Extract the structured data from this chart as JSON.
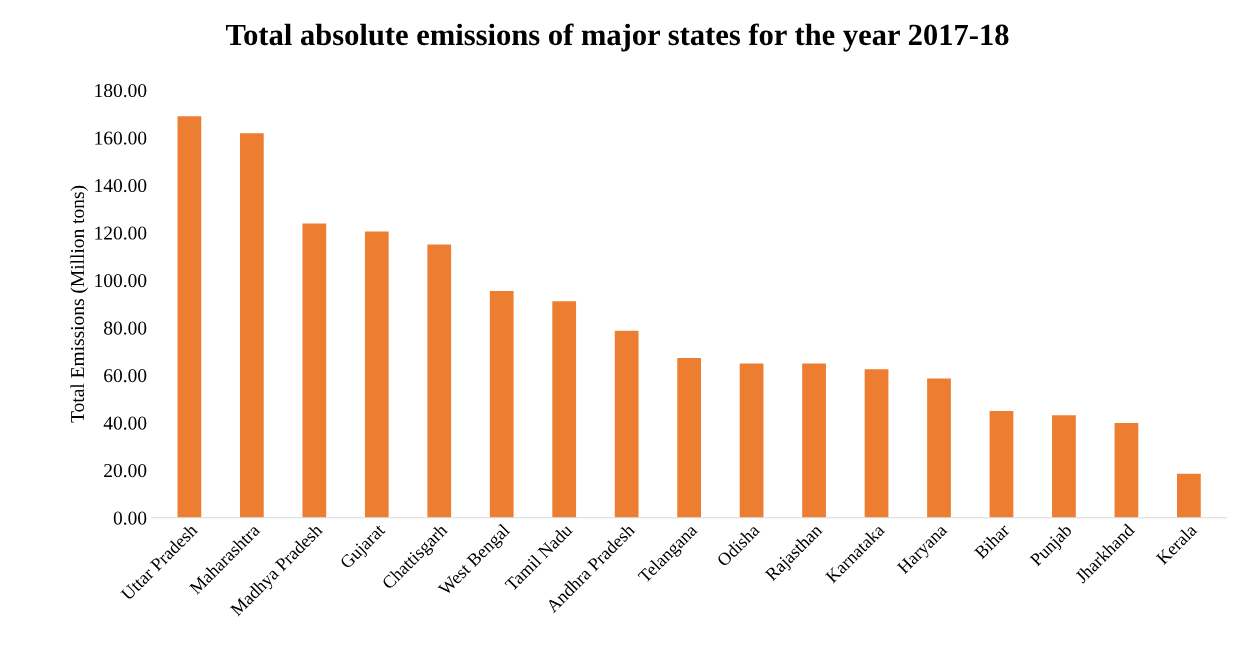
{
  "chart_data": {
    "type": "bar",
    "title": "Total absolute emissions of major states for the year 2017-18",
    "ylabel": "Total Emissions (Million tons)",
    "categories": [
      "Uttar Pradesh",
      "Maharashtra",
      "Madhya Pradesh",
      "Gujarat",
      "Chattisgarh",
      "West Bengal",
      "Tamil Nadu",
      "Andhra Pradesh",
      "Telangana",
      "Odisha",
      "Rajasthan",
      "Karnataka",
      "Haryana",
      "Bihar",
      "Punjab",
      "Jharkhand",
      "Kerala"
    ],
    "values": [
      169.0,
      161.9,
      123.9,
      120.5,
      115.0,
      95.4,
      91.1,
      78.7,
      67.2,
      64.9,
      64.9,
      62.5,
      58.6,
      44.9,
      43.1,
      39.9,
      18.5
    ],
    "color": "#ed7d31",
    "ylim": [
      0,
      180
    ],
    "yticks": [
      {
        "value": 0,
        "label": "0.00"
      },
      {
        "value": 20,
        "label": "20.00"
      },
      {
        "value": 40,
        "label": "40.00"
      },
      {
        "value": 60,
        "label": "60.00"
      },
      {
        "value": 80,
        "label": "80.00"
      },
      {
        "value": 100,
        "label": "100.00"
      },
      {
        "value": 120,
        "label": "120.00"
      },
      {
        "value": 140,
        "label": "140.00"
      },
      {
        "value": 160,
        "label": "160.00"
      },
      {
        "value": 180,
        "label": "180.00"
      }
    ],
    "grid": false,
    "legend": false
  }
}
